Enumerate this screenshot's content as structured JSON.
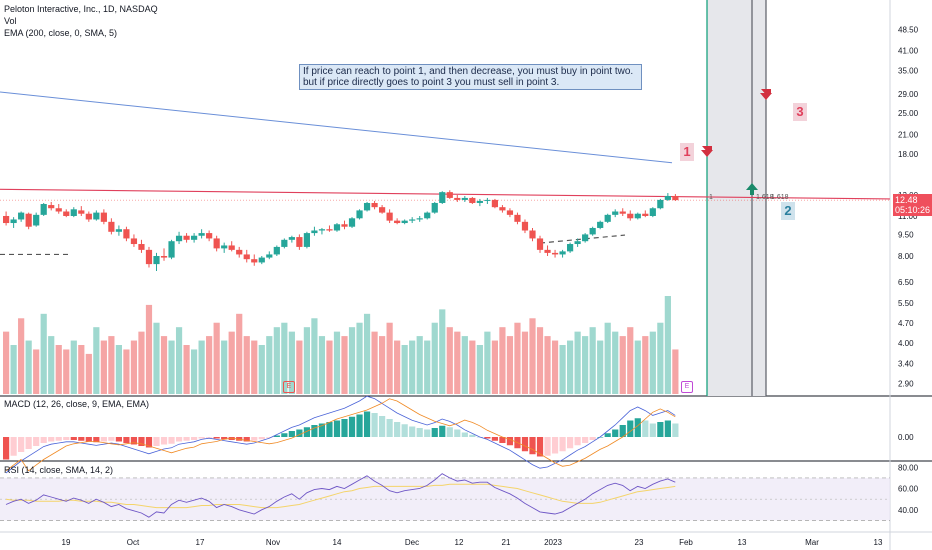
{
  "header": {
    "symbol_line": "Peloton Interactive, Inc., 1D, NASDAQ",
    "vol_label": "Vol",
    "ema_label": "EMA (200, close, 0, SMA, 5)",
    "macd_label": "MACD (12, 26, close, 9, EMA, EMA)",
    "rsi_label": "RSI (14, close, SMA, 14, 2)"
  },
  "annotation": {
    "line1": "If price can reach to point 1, and then decrease, you must buy in point two.",
    "line2": "but if price directly goes to point 3 you must sell in point 3."
  },
  "markers": {
    "p1": "1",
    "p2": "2",
    "p3": "3",
    "small1": "1",
    "small2": "1.618",
    "small3": "1.618"
  },
  "price_tag": {
    "price": "12.48",
    "countdown": "05:10:26"
  },
  "earnings_badge": "E",
  "colors": {
    "up": "#26a69a",
    "down": "#ef5350",
    "vol_up": "#9fd8cf",
    "vol_down": "#f5a5a5",
    "ema": "#6a8fd8",
    "resistance": "#e0405c"
  },
  "chart_data": [
    {
      "type": "candlestick",
      "title": "Peloton Interactive, Inc., 1D, NASDAQ",
      "x_ticks": [
        "19",
        "Oct",
        "17",
        "Nov",
        "14",
        "Dec",
        "12",
        "21",
        "2023",
        "23",
        "Feb",
        "13",
        "Mar",
        "13"
      ],
      "y_ticks": [
        "48.50",
        "41.00",
        "35.00",
        "29.00",
        "25.00",
        "21.00",
        "18.00",
        "13.00",
        "11.00",
        "9.50",
        "8.00",
        "6.50",
        "5.50",
        "4.70",
        "4.00",
        "3.40",
        "2.90"
      ],
      "log_scale": true,
      "ohlc": [
        [
          11.0,
          11.4,
          10.2,
          10.4
        ],
        [
          10.4,
          10.9,
          10.0,
          10.7
        ],
        [
          10.7,
          11.4,
          10.5,
          11.3
        ],
        [
          11.2,
          11.3,
          9.9,
          10.1
        ],
        [
          10.2,
          11.3,
          10.1,
          11.1
        ],
        [
          11.1,
          12.2,
          11.0,
          12.1
        ],
        [
          12.0,
          12.3,
          11.5,
          11.7
        ],
        [
          11.7,
          12.1,
          11.2,
          11.4
        ],
        [
          11.4,
          11.6,
          10.9,
          11.0
        ],
        [
          11.0,
          11.8,
          10.9,
          11.6
        ],
        [
          11.5,
          11.9,
          11.0,
          11.2
        ],
        [
          11.2,
          11.4,
          10.5,
          10.7
        ],
        [
          10.7,
          11.5,
          10.6,
          11.3
        ],
        [
          11.3,
          11.6,
          10.3,
          10.5
        ],
        [
          10.5,
          10.8,
          9.5,
          9.7
        ],
        [
          9.7,
          10.2,
          9.4,
          9.9
        ],
        [
          9.9,
          10.1,
          9.0,
          9.2
        ],
        [
          9.2,
          9.5,
          8.6,
          8.8
        ],
        [
          8.8,
          9.1,
          8.2,
          8.4
        ],
        [
          8.4,
          8.6,
          7.3,
          7.5
        ],
        [
          7.5,
          8.2,
          7.1,
          8.0
        ],
        [
          8.0,
          8.5,
          7.7,
          7.9
        ],
        [
          7.9,
          9.1,
          7.8,
          9.0
        ],
        [
          9.0,
          9.7,
          8.8,
          9.4
        ],
        [
          9.4,
          9.6,
          8.9,
          9.1
        ],
        [
          9.1,
          9.6,
          8.9,
          9.4
        ],
        [
          9.4,
          9.9,
          9.2,
          9.6
        ],
        [
          9.6,
          9.8,
          9.0,
          9.2
        ],
        [
          9.2,
          9.4,
          8.3,
          8.5
        ],
        [
          8.5,
          8.9,
          8.2,
          8.7
        ],
        [
          8.7,
          9.0,
          8.3,
          8.4
        ],
        [
          8.4,
          8.6,
          7.9,
          8.1
        ],
        [
          8.1,
          8.4,
          7.6,
          7.8
        ],
        [
          7.8,
          8.1,
          7.4,
          7.6
        ],
        [
          7.6,
          8.0,
          7.5,
          7.9
        ],
        [
          7.9,
          8.3,
          7.8,
          8.1
        ],
        [
          8.1,
          8.7,
          8.0,
          8.6
        ],
        [
          8.6,
          9.2,
          8.5,
          9.1
        ],
        [
          9.1,
          9.4,
          8.9,
          9.3
        ],
        [
          9.3,
          9.5,
          8.4,
          8.6
        ],
        [
          8.6,
          9.7,
          8.5,
          9.6
        ],
        [
          9.6,
          10.1,
          9.4,
          9.8
        ],
        [
          9.8,
          10.0,
          9.5,
          9.9
        ],
        [
          9.9,
          10.2,
          9.7,
          9.8
        ],
        [
          9.8,
          10.4,
          9.7,
          10.3
        ],
        [
          10.3,
          10.6,
          9.9,
          10.1
        ],
        [
          10.1,
          10.9,
          10.0,
          10.8
        ],
        [
          10.8,
          11.6,
          10.7,
          11.5
        ],
        [
          11.5,
          12.3,
          11.4,
          12.2
        ],
        [
          12.2,
          12.4,
          11.6,
          11.8
        ],
        [
          11.8,
          12.0,
          11.2,
          11.3
        ],
        [
          11.3,
          11.6,
          10.4,
          10.6
        ],
        [
          10.6,
          10.8,
          10.3,
          10.4
        ],
        [
          10.4,
          10.7,
          10.3,
          10.6
        ],
        [
          10.6,
          10.9,
          10.4,
          10.7
        ],
        [
          10.7,
          11.0,
          10.5,
          10.8
        ],
        [
          10.8,
          11.4,
          10.7,
          11.3
        ],
        [
          11.3,
          12.3,
          11.2,
          12.2
        ],
        [
          12.2,
          13.4,
          12.1,
          13.3
        ],
        [
          13.3,
          13.5,
          12.6,
          12.7
        ],
        [
          12.7,
          13.0,
          12.3,
          12.5
        ],
        [
          12.5,
          12.9,
          12.3,
          12.7
        ],
        [
          12.7,
          12.8,
          12.1,
          12.2
        ],
        [
          12.2,
          12.6,
          11.9,
          12.4
        ],
        [
          12.4,
          12.7,
          12.1,
          12.5
        ],
        [
          12.5,
          12.6,
          11.7,
          11.8
        ],
        [
          11.8,
          12.0,
          11.3,
          11.5
        ],
        [
          11.5,
          11.7,
          10.9,
          11.1
        ],
        [
          11.1,
          11.3,
          10.3,
          10.5
        ],
        [
          10.5,
          10.7,
          9.6,
          9.8
        ],
        [
          9.8,
          10.0,
          9.0,
          9.2
        ],
        [
          9.2,
          9.4,
          8.2,
          8.4
        ],
        [
          8.4,
          8.7,
          8.0,
          8.2
        ],
        [
          8.2,
          8.4,
          7.9,
          8.1
        ],
        [
          8.1,
          8.4,
          7.9,
          8.3
        ],
        [
          8.3,
          8.9,
          8.2,
          8.8
        ],
        [
          8.8,
          9.2,
          8.6,
          9.0
        ],
        [
          9.0,
          9.6,
          8.9,
          9.5
        ],
        [
          9.5,
          10.1,
          9.4,
          10.0
        ],
        [
          10.0,
          10.6,
          9.9,
          10.5
        ],
        [
          10.5,
          11.2,
          10.4,
          11.1
        ],
        [
          11.1,
          11.6,
          10.9,
          11.4
        ],
        [
          11.4,
          11.7,
          11.0,
          11.2
        ],
        [
          11.2,
          11.5,
          10.6,
          10.8
        ],
        [
          10.8,
          11.3,
          10.7,
          11.2
        ],
        [
          11.2,
          11.5,
          10.9,
          11.0
        ],
        [
          11.0,
          11.8,
          10.9,
          11.7
        ],
        [
          11.7,
          12.6,
          11.6,
          12.5
        ],
        [
          12.5,
          13.2,
          12.4,
          12.9
        ],
        [
          12.9,
          13.1,
          12.4,
          12.48
        ]
      ],
      "ema_200": {
        "start": 29.5,
        "end": 16.8
      },
      "resistance_level": {
        "start": 13.6,
        "end": 12.6
      },
      "dashed_levels": [
        8.1,
        9.3
      ]
    },
    {
      "type": "bar",
      "name": "Vol",
      "values": [
        14,
        11,
        17,
        12,
        10,
        18,
        13,
        11,
        10,
        12,
        11,
        9,
        15,
        12,
        13,
        11,
        10,
        12,
        14,
        20,
        16,
        13,
        12,
        15,
        11,
        10,
        12,
        13,
        16,
        12,
        14,
        18,
        13,
        12,
        11,
        13,
        15,
        16,
        14,
        12,
        15,
        17,
        13,
        12,
        14,
        13,
        15,
        16,
        18,
        14,
        13,
        16,
        12,
        11,
        12,
        13,
        12,
        16,
        19,
        15,
        14,
        13,
        12,
        11,
        14,
        12,
        15,
        13,
        16,
        14,
        17,
        15,
        13,
        12,
        11,
        12,
        14,
        13,
        15,
        12,
        16,
        14,
        13,
        15,
        12,
        13,
        14,
        16,
        22,
        10
      ],
      "up_flags": [
        0,
        1,
        0,
        1,
        0,
        1,
        1,
        0,
        0,
        1,
        0,
        0,
        1,
        0,
        0,
        1,
        0,
        0,
        0,
        0,
        1,
        0,
        1,
        1,
        0,
        1,
        1,
        0,
        0,
        1,
        0,
        0,
        0,
        0,
        1,
        1,
        1,
        1,
        1,
        0,
        1,
        1,
        1,
        0,
        1,
        0,
        1,
        1,
        1,
        0,
        0,
        0,
        0,
        1,
        1,
        1,
        1,
        1,
        1,
        0,
        0,
        1,
        0,
        1,
        1,
        0,
        0,
        0,
        0,
        0,
        0,
        0,
        0,
        0,
        1,
        1,
        1,
        1,
        1,
        1,
        1,
        1,
        0,
        0,
        1,
        0,
        1,
        1,
        1,
        0
      ]
    },
    {
      "type": "histogram",
      "name": "MACD",
      "y_ticks": [
        "0.00"
      ],
      "values": [
        -0.3,
        -0.25,
        -0.2,
        -0.16,
        -0.12,
        -0.08,
        -0.06,
        -0.05,
        -0.04,
        -0.04,
        -0.05,
        -0.06,
        -0.07,
        -0.06,
        -0.05,
        -0.06,
        -0.08,
        -0.1,
        -0.12,
        -0.14,
        -0.12,
        -0.1,
        -0.09,
        -0.06,
        -0.05,
        -0.04,
        -0.02,
        -0.01,
        -0.02,
        -0.03,
        -0.04,
        -0.05,
        -0.06,
        -0.05,
        -0.03,
        -0.01,
        0.02,
        0.05,
        0.08,
        0.1,
        0.13,
        0.16,
        0.18,
        0.2,
        0.22,
        0.24,
        0.27,
        0.3,
        0.34,
        0.32,
        0.28,
        0.24,
        0.2,
        0.17,
        0.14,
        0.12,
        0.1,
        0.12,
        0.15,
        0.13,
        0.1,
        0.06,
        0.03,
        0.0,
        -0.02,
        -0.05,
        -0.08,
        -0.11,
        -0.15,
        -0.19,
        -0.23,
        -0.26,
        -0.25,
        -0.22,
        -0.19,
        -0.15,
        -0.11,
        -0.08,
        -0.04,
        0.0,
        0.05,
        0.1,
        0.16,
        0.22,
        0.25,
        0.22,
        0.18,
        0.2,
        0.22,
        0.18
      ]
    },
    {
      "type": "line",
      "name": "RSI",
      "y_ticks": [
        "80.00",
        "60.00",
        "40.00"
      ],
      "ylim": [
        20,
        85
      ],
      "values": [
        45,
        48,
        50,
        46,
        49,
        54,
        52,
        50,
        48,
        51,
        49,
        46,
        50,
        47,
        43,
        45,
        41,
        39,
        37,
        33,
        38,
        37,
        45,
        49,
        47,
        49,
        51,
        48,
        42,
        45,
        43,
        40,
        38,
        36,
        40,
        43,
        48,
        52,
        55,
        50,
        56,
        59,
        60,
        59,
        62,
        60,
        64,
        68,
        72,
        67,
        63,
        58,
        56,
        58,
        59,
        60,
        63,
        68,
        74,
        70,
        67,
        68,
        65,
        66,
        66,
        61,
        58,
        55,
        51,
        46,
        42,
        38,
        37,
        36,
        38,
        42,
        46,
        50,
        55,
        59,
        63,
        65,
        63,
        58,
        62,
        60,
        64,
        67,
        69,
        66
      ],
      "sma_values": [
        50,
        49,
        49,
        49,
        48,
        48,
        48,
        48,
        49,
        49,
        48,
        48,
        48,
        47,
        47,
        46,
        45,
        45,
        44,
        43,
        42,
        42,
        42,
        42,
        42,
        43,
        44,
        44,
        45,
        45,
        45,
        45,
        44,
        43,
        42,
        42,
        42,
        43,
        44,
        45,
        47,
        49,
        51,
        53,
        55,
        57,
        58,
        60,
        61,
        62,
        62,
        62,
        62,
        62,
        62,
        62,
        62,
        63,
        63,
        64,
        64,
        64,
        64,
        64,
        64,
        63,
        62,
        61,
        60,
        58,
        56,
        54,
        52,
        50,
        48,
        47,
        46,
        46,
        46,
        47,
        49,
        51,
        53,
        55,
        57,
        58,
        59,
        60,
        61,
        62
      ]
    }
  ]
}
